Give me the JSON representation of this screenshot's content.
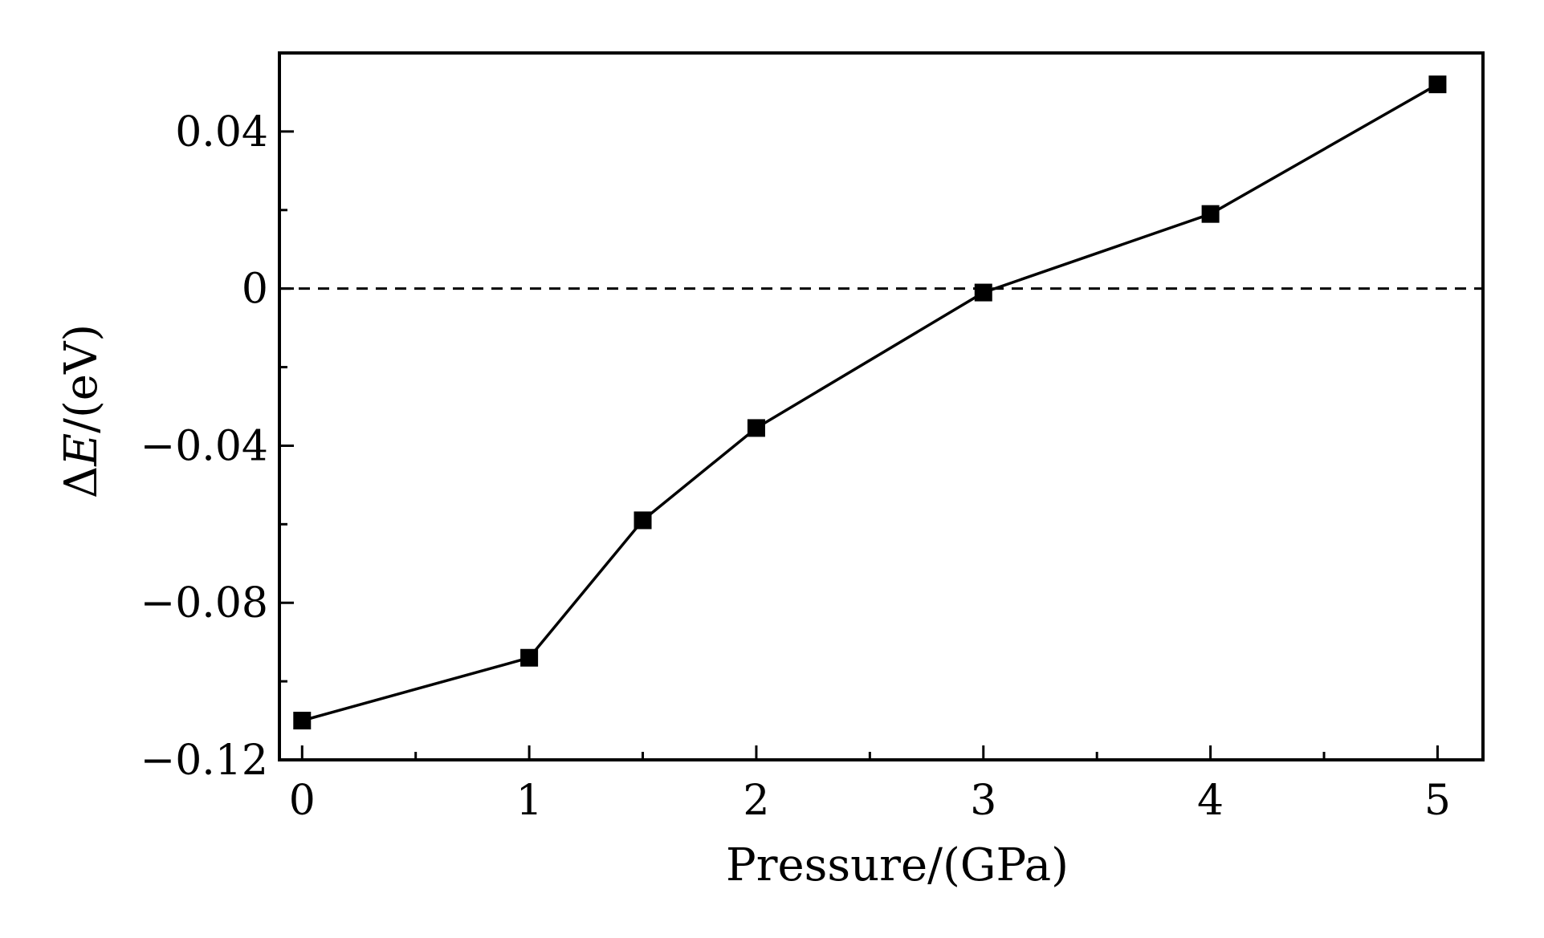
{
  "chart_data": {
    "type": "line",
    "xlabel": "Pressure/(GPa)",
    "ylabel": {
      "prefix": "Δ",
      "symbol": "E",
      "suffix": "/(eV)"
    },
    "xlim": [
      -0.1,
      5.2
    ],
    "ylim": [
      -0.12,
      0.06
    ],
    "x_ticks": [
      0,
      1,
      2,
      3,
      4,
      5
    ],
    "x_tick_labels": [
      "0",
      "1",
      "2",
      "3",
      "4",
      "5"
    ],
    "y_ticks": [
      0.04,
      0,
      -0.04,
      -0.08,
      -0.12
    ],
    "y_tick_labels": [
      "0.04",
      "0",
      "−0.04",
      "−0.08",
      "−0.12"
    ],
    "y_minor_ticks": [
      0.06,
      0.02,
      -0.02,
      -0.06,
      -0.1
    ],
    "x_minor_ticks": [
      0.5,
      1.5,
      2.5,
      3.5,
      4.5
    ],
    "reference_line": {
      "y": 0,
      "style": "dashed"
    },
    "grid": false,
    "series": [
      {
        "marker": "square",
        "color": "#000000",
        "x": [
          0,
          1,
          1.5,
          2,
          3,
          4,
          5
        ],
        "y": [
          -0.11,
          -0.094,
          -0.059,
          -0.0355,
          -0.001,
          0.019,
          0.052
        ]
      }
    ]
  }
}
